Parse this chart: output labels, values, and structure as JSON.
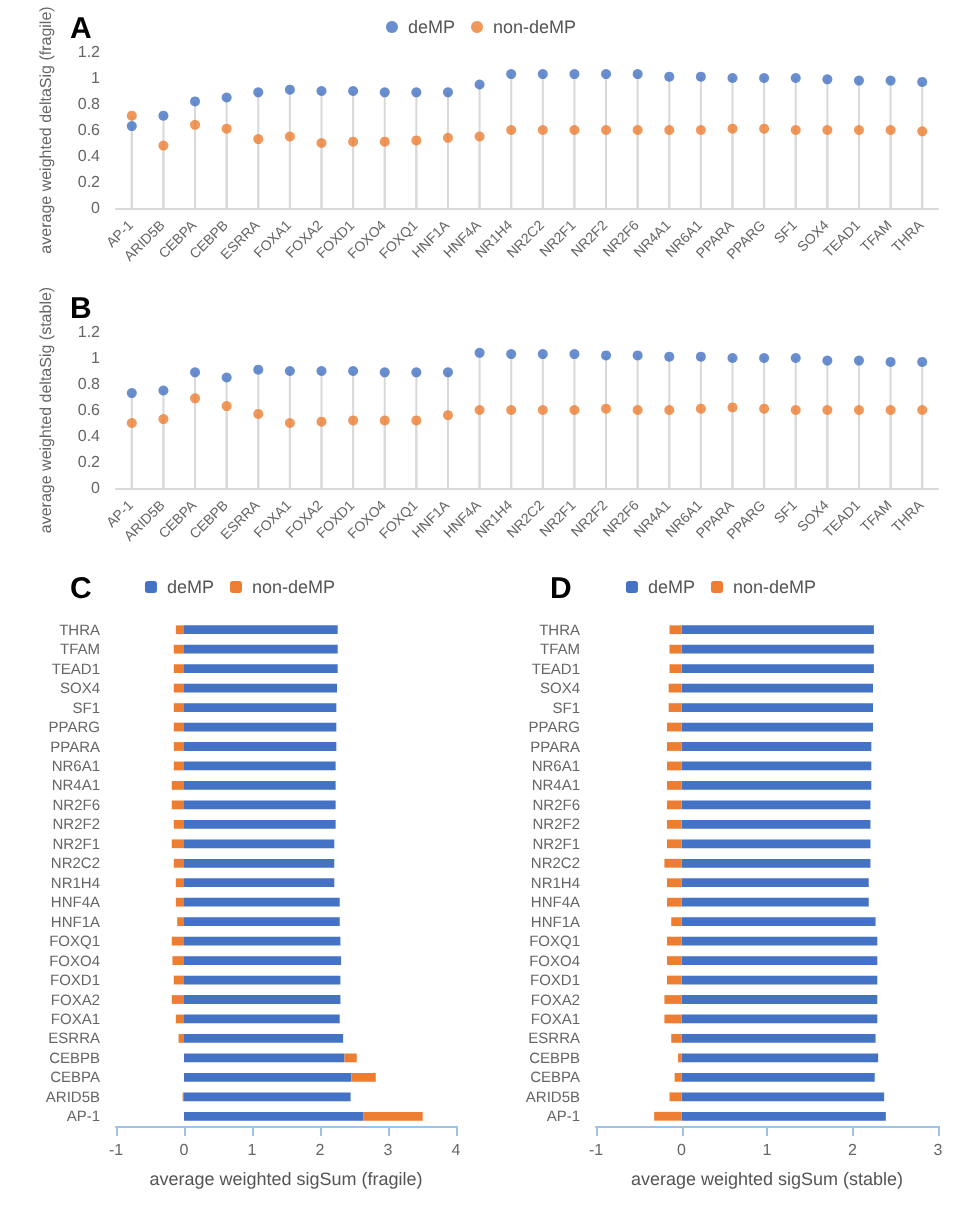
{
  "chart_data": [
    {
      "type": "lollipop",
      "title": "A",
      "ylabel": "average weighted deltaSig (fragile)",
      "categories": [
        "AP-1",
        "ARID5B",
        "CEBPA",
        "CEBPB",
        "ESRRA",
        "FOXA1",
        "FOXA2",
        "FOXD1",
        "FOXO4",
        "FOXQ1",
        "HNF1A",
        "HNF4A",
        "NR1H4",
        "NR2C2",
        "NR2F1",
        "NR2F2",
        "NR2F6",
        "NR4A1",
        "NR6A1",
        "PPARA",
        "PPARG",
        "SF1",
        "SOX4",
        "TEAD1",
        "TFAM",
        "THRA"
      ],
      "series": [
        {
          "name": "deMP",
          "color": "#4472c4",
          "values": [
            0.63,
            0.71,
            0.82,
            0.85,
            0.89,
            0.91,
            0.9,
            0.9,
            0.89,
            0.89,
            0.89,
            0.95,
            1.03,
            1.03,
            1.03,
            1.03,
            1.03,
            1.01,
            1.01,
            1.0,
            1.0,
            1.0,
            0.99,
            0.98,
            0.98,
            0.97
          ]
        },
        {
          "name": "non-deMP",
          "color": "#ed7d31",
          "values": [
            0.71,
            0.48,
            0.64,
            0.61,
            0.53,
            0.55,
            0.5,
            0.51,
            0.51,
            0.52,
            0.54,
            0.55,
            0.6,
            0.6,
            0.6,
            0.6,
            0.6,
            0.6,
            0.6,
            0.61,
            0.61,
            0.6,
            0.6,
            0.6,
            0.6,
            0.59
          ]
        }
      ],
      "ylim": [
        0,
        1.2
      ],
      "yticks": [
        0,
        0.2,
        0.4,
        0.6,
        0.8,
        1,
        1.2
      ],
      "legend": "top",
      "marker": "circle"
    },
    {
      "type": "lollipop",
      "title": "B",
      "ylabel": "average weighted deltaSig (stable)",
      "categories": [
        "AP-1",
        "ARID5B",
        "CEBPA",
        "CEBPB",
        "ESRRA",
        "FOXA1",
        "FOXA2",
        "FOXD1",
        "FOXO4",
        "FOXQ1",
        "HNF1A",
        "HNF4A",
        "NR1H4",
        "NR2C2",
        "NR2F1",
        "NR2F2",
        "NR2F6",
        "NR4A1",
        "NR6A1",
        "PPARA",
        "PPARG",
        "SF1",
        "SOX4",
        "TEAD1",
        "TFAM",
        "THRA"
      ],
      "series": [
        {
          "color": "#4472c4",
          "values": [
            0.73,
            0.75,
            0.89,
            0.85,
            0.91,
            0.9,
            0.9,
            0.9,
            0.89,
            0.89,
            0.89,
            1.04,
            1.03,
            1.03,
            1.03,
            1.02,
            1.02,
            1.01,
            1.01,
            1.0,
            1.0,
            1.0,
            0.98,
            0.98,
            0.97,
            0.97
          ]
        },
        {
          "color": "#ed7d31",
          "values": [
            0.5,
            0.53,
            0.69,
            0.63,
            0.57,
            0.5,
            0.51,
            0.52,
            0.52,
            0.52,
            0.56,
            0.6,
            0.6,
            0.6,
            0.6,
            0.61,
            0.6,
            0.6,
            0.61,
            0.62,
            0.61,
            0.6,
            0.6,
            0.6,
            0.6,
            0.6
          ]
        }
      ],
      "ylim": [
        0,
        1.2
      ],
      "yticks": [
        0,
        0.2,
        0.4,
        0.6,
        0.8,
        1,
        1.2
      ],
      "marker": "circle"
    },
    {
      "type": "bar",
      "title": "C",
      "xlabel": "average weighted sigSum (fragile)",
      "orientation": "horizontal",
      "stacked": true,
      "categories": [
        "THRA",
        "TFAM",
        "TEAD1",
        "SOX4",
        "SF1",
        "PPARG",
        "PPARA",
        "NR6A1",
        "NR4A1",
        "NR2F6",
        "NR2F2",
        "NR2F1",
        "NR2C2",
        "NR1H4",
        "HNF4A",
        "HNF1A",
        "FOXQ1",
        "FOXO4",
        "FOXD1",
        "FOXA2",
        "FOXA1",
        "ESRRA",
        "CEBPB",
        "CEBPA",
        "ARID5B",
        "AP-1"
      ],
      "series": [
        {
          "name": "deMP",
          "color": "#4472c4",
          "values": [
            2.26,
            2.26,
            2.26,
            2.25,
            2.24,
            2.24,
            2.24,
            2.23,
            2.23,
            2.23,
            2.23,
            2.21,
            2.21,
            2.21,
            2.29,
            2.29,
            2.3,
            2.31,
            2.3,
            2.3,
            2.29,
            2.34,
            2.36,
            2.46,
            2.45,
            2.64
          ]
        },
        {
          "name": "non-deMP",
          "color": "#ed7d31",
          "values": [
            -0.12,
            -0.15,
            -0.15,
            -0.15,
            -0.15,
            -0.15,
            -0.15,
            -0.15,
            -0.18,
            -0.18,
            -0.15,
            -0.18,
            -0.15,
            -0.12,
            -0.12,
            -0.1,
            -0.18,
            -0.17,
            -0.15,
            -0.18,
            -0.12,
            -0.08,
            0.18,
            0.36,
            -0.02,
            0.87
          ]
        }
      ],
      "xlim": [
        -1,
        4
      ],
      "xticks": [
        -1,
        0,
        1,
        2,
        3,
        4
      ],
      "legend": "top"
    },
    {
      "type": "bar",
      "title": "D",
      "xlabel": "average weighted sigSum (stable)",
      "orientation": "horizontal",
      "stacked": true,
      "categories": [
        "THRA",
        "TFAM",
        "TEAD1",
        "SOX4",
        "SF1",
        "PPARG",
        "PPARA",
        "NR6A1",
        "NR4A1",
        "NR2F6",
        "NR2F2",
        "NR2F1",
        "NR2C2",
        "NR1H4",
        "HNF4A",
        "HNF1A",
        "FOXQ1",
        "FOXO4",
        "FOXD1",
        "FOXA2",
        "FOXA1",
        "ESRRA",
        "CEBPB",
        "CEBPA",
        "ARID5B",
        "AP-1"
      ],
      "series": [
        {
          "name": "deMP",
          "color": "#4472c4",
          "values": [
            2.25,
            2.25,
            2.25,
            2.24,
            2.24,
            2.24,
            2.22,
            2.22,
            2.22,
            2.21,
            2.21,
            2.21,
            2.21,
            2.19,
            2.19,
            2.27,
            2.29,
            2.29,
            2.29,
            2.29,
            2.29,
            2.27,
            2.3,
            2.26,
            2.37,
            2.39
          ]
        },
        {
          "name": "non-deMP",
          "color": "#ed7d31",
          "values": [
            -0.14,
            -0.14,
            -0.14,
            -0.15,
            -0.15,
            -0.17,
            -0.17,
            -0.17,
            -0.17,
            -0.17,
            -0.17,
            -0.17,
            -0.2,
            -0.17,
            -0.17,
            -0.12,
            -0.17,
            -0.17,
            -0.17,
            -0.2,
            -0.2,
            -0.12,
            -0.04,
            -0.08,
            -0.14,
            -0.32
          ]
        }
      ],
      "xlim": [
        -1,
        3
      ],
      "xticks": [
        -1,
        0,
        1,
        2,
        3
      ],
      "legend": "top"
    }
  ]
}
